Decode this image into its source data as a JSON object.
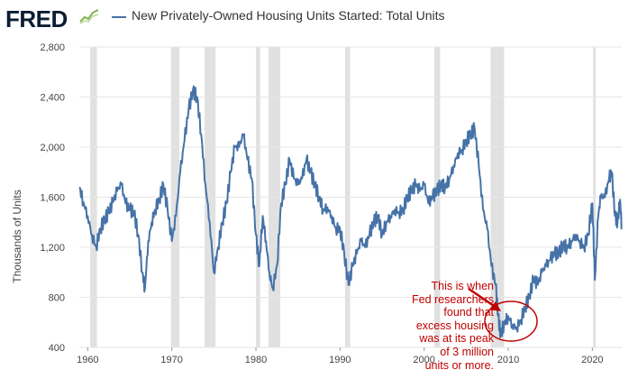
{
  "header": {
    "logo_text": "FRED",
    "logo_icon": "chart-trend-icon",
    "title": "New Privately-Owned Housing Units Started: Total Units"
  },
  "colors": {
    "series": "#4572a7",
    "recession": "#e1e1e1",
    "grid": "#e6e6e6",
    "annotation": "#c00000"
  },
  "annotation": {
    "text": "This is when\nFed researchers\nfound that\nexcess housing\nwas at its peak\nof 3 million\nunits or more."
  },
  "chart_data": {
    "type": "line",
    "title": "New Privately-Owned Housing Units Started: Total Units",
    "xlabel": "",
    "ylabel": "Thousands of Units",
    "xlim": [
      1959,
      2023.5
    ],
    "ylim": [
      400,
      2800
    ],
    "x_ticks": [
      1960,
      1970,
      1980,
      1990,
      2000,
      2010,
      2020
    ],
    "y_ticks": [
      400,
      800,
      1200,
      1600,
      2000,
      2400,
      2800
    ],
    "y_tick_labels": [
      "400",
      "800",
      "1,200",
      "1,600",
      "2,000",
      "2,400",
      "2,800"
    ],
    "grid": "horizontal",
    "recessions": [
      [
        1960.3,
        1961.1
      ],
      [
        1969.9,
        1970.9
      ],
      [
        1973.9,
        1975.2
      ],
      [
        1980.0,
        1980.5
      ],
      [
        1981.5,
        1982.9
      ],
      [
        1990.6,
        1991.2
      ],
      [
        2001.2,
        2001.9
      ],
      [
        2007.9,
        2009.5
      ],
      [
        2020.1,
        2020.4
      ]
    ],
    "series": [
      {
        "values": [
          [
            1959.0,
            1680
          ],
          [
            1959.5,
            1560
          ],
          [
            1960.0,
            1450
          ],
          [
            1960.5,
            1300
          ],
          [
            1961.0,
            1200
          ],
          [
            1961.5,
            1350
          ],
          [
            1962.0,
            1420
          ],
          [
            1962.5,
            1480
          ],
          [
            1963.0,
            1560
          ],
          [
            1963.5,
            1650
          ],
          [
            1964.0,
            1700
          ],
          [
            1964.5,
            1550
          ],
          [
            1965.0,
            1500
          ],
          [
            1965.5,
            1480
          ],
          [
            1966.0,
            1300
          ],
          [
            1966.5,
            1000
          ],
          [
            1966.8,
            870
          ],
          [
            1967.2,
            1250
          ],
          [
            1967.6,
            1400
          ],
          [
            1968.0,
            1500
          ],
          [
            1968.5,
            1580
          ],
          [
            1969.0,
            1700
          ],
          [
            1969.5,
            1500
          ],
          [
            1970.0,
            1250
          ],
          [
            1970.5,
            1450
          ],
          [
            1971.0,
            1800
          ],
          [
            1971.5,
            2050
          ],
          [
            1972.0,
            2300
          ],
          [
            1972.5,
            2450
          ],
          [
            1973.0,
            2400
          ],
          [
            1973.5,
            2100
          ],
          [
            1974.0,
            1700
          ],
          [
            1974.5,
            1400
          ],
          [
            1975.0,
            1000
          ],
          [
            1975.5,
            1200
          ],
          [
            1976.0,
            1400
          ],
          [
            1976.5,
            1550
          ],
          [
            1977.0,
            1800
          ],
          [
            1977.5,
            2000
          ],
          [
            1978.0,
            2000
          ],
          [
            1978.5,
            2100
          ],
          [
            1979.0,
            1900
          ],
          [
            1979.5,
            1750
          ],
          [
            1980.0,
            1300
          ],
          [
            1980.4,
            1050
          ],
          [
            1980.8,
            1450
          ],
          [
            1981.2,
            1250
          ],
          [
            1981.6,
            1000
          ],
          [
            1982.0,
            870
          ],
          [
            1982.5,
            1050
          ],
          [
            1983.0,
            1550
          ],
          [
            1983.5,
            1700
          ],
          [
            1984.0,
            1900
          ],
          [
            1984.5,
            1750
          ],
          [
            1985.0,
            1700
          ],
          [
            1985.5,
            1750
          ],
          [
            1986.0,
            1900
          ],
          [
            1986.5,
            1800
          ],
          [
            1987.0,
            1700
          ],
          [
            1987.5,
            1600
          ],
          [
            1988.0,
            1500
          ],
          [
            1988.5,
            1520
          ],
          [
            1989.0,
            1450
          ],
          [
            1989.5,
            1350
          ],
          [
            1990.0,
            1350
          ],
          [
            1990.5,
            1150
          ],
          [
            1991.0,
            900
          ],
          [
            1991.5,
            1050
          ],
          [
            1992.0,
            1150
          ],
          [
            1992.5,
            1250
          ],
          [
            1993.0,
            1200
          ],
          [
            1993.5,
            1300
          ],
          [
            1994.0,
            1400
          ],
          [
            1994.5,
            1450
          ],
          [
            1995.0,
            1300
          ],
          [
            1995.5,
            1400
          ],
          [
            1996.0,
            1450
          ],
          [
            1996.5,
            1500
          ],
          [
            1997.0,
            1480
          ],
          [
            1997.5,
            1500
          ],
          [
            1998.0,
            1600
          ],
          [
            1998.5,
            1650
          ],
          [
            1999.0,
            1700
          ],
          [
            1999.5,
            1650
          ],
          [
            2000.0,
            1700
          ],
          [
            2000.5,
            1550
          ],
          [
            2001.0,
            1600
          ],
          [
            2001.5,
            1650
          ],
          [
            2002.0,
            1700
          ],
          [
            2002.5,
            1680
          ],
          [
            2003.0,
            1750
          ],
          [
            2003.5,
            1850
          ],
          [
            2004.0,
            1950
          ],
          [
            2004.5,
            1980
          ],
          [
            2005.0,
            2050
          ],
          [
            2005.5,
            2100
          ],
          [
            2006.0,
            2150
          ],
          [
            2006.5,
            1850
          ],
          [
            2007.0,
            1500
          ],
          [
            2007.5,
            1350
          ],
          [
            2008.0,
            1050
          ],
          [
            2008.5,
            900
          ],
          [
            2008.8,
            650
          ],
          [
            2009.1,
            500
          ],
          [
            2009.5,
            590
          ],
          [
            2010.0,
            650
          ],
          [
            2010.5,
            580
          ],
          [
            2011.0,
            560
          ],
          [
            2011.5,
            620
          ],
          [
            2012.0,
            720
          ],
          [
            2012.5,
            800
          ],
          [
            2013.0,
            950
          ],
          [
            2013.5,
            900
          ],
          [
            2014.0,
            1000
          ],
          [
            2014.5,
            1050
          ],
          [
            2015.0,
            1100
          ],
          [
            2015.5,
            1150
          ],
          [
            2016.0,
            1150
          ],
          [
            2016.5,
            1220
          ],
          [
            2017.0,
            1200
          ],
          [
            2017.5,
            1250
          ],
          [
            2018.0,
            1300
          ],
          [
            2018.5,
            1250
          ],
          [
            2019.0,
            1200
          ],
          [
            2019.5,
            1300
          ],
          [
            2020.0,
            1550
          ],
          [
            2020.3,
            940
          ],
          [
            2020.7,
            1450
          ],
          [
            2021.0,
            1600
          ],
          [
            2021.5,
            1600
          ],
          [
            2022.0,
            1750
          ],
          [
            2022.3,
            1800
          ],
          [
            2022.7,
            1450
          ],
          [
            2023.0,
            1400
          ],
          [
            2023.3,
            1580
          ],
          [
            2023.5,
            1350
          ]
        ]
      }
    ]
  }
}
